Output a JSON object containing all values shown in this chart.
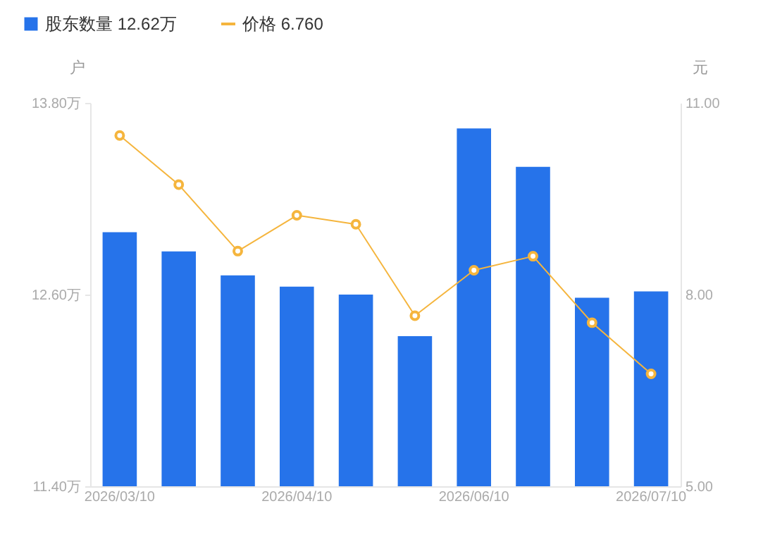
{
  "chart_data": {
    "type": "bar",
    "categories": [
      "2026/03/10",
      null,
      null,
      "2026/04/10",
      null,
      null,
      "2026/06/10",
      null,
      null,
      "2026/07/10"
    ],
    "ylabel": "户",
    "y2label": "元",
    "ylim": [
      11.4,
      13.8
    ],
    "yticks": [
      {
        "value": 11.4,
        "label": "11.40万"
      },
      {
        "value": 12.6,
        "label": "12.60万"
      },
      {
        "value": 13.8,
        "label": "13.80万"
      }
    ],
    "y2lim": [
      5,
      11
    ],
    "y2ticks": [
      {
        "value": 5,
        "label": "5.00"
      },
      {
        "value": 8,
        "label": "8.00"
      },
      {
        "value": 11,
        "label": "11.00"
      }
    ],
    "legend": "top left",
    "marker": "circle",
    "series": [
      {
        "name": "股东数量 12.62万",
        "color": "#2673ea",
        "values": [
          12.99,
          12.87,
          12.72,
          12.65,
          12.6,
          12.34,
          13.64,
          13.4,
          12.58,
          12.62
        ]
      },
      {
        "name": "价格 6.760",
        "type": "line",
        "axis": "y2",
        "color": "#f5b53d",
        "values": [
          10.49,
          9.72,
          8.68,
          9.24,
          9.1,
          7.67,
          8.38,
          8.6,
          7.56,
          6.76
        ]
      }
    ]
  }
}
